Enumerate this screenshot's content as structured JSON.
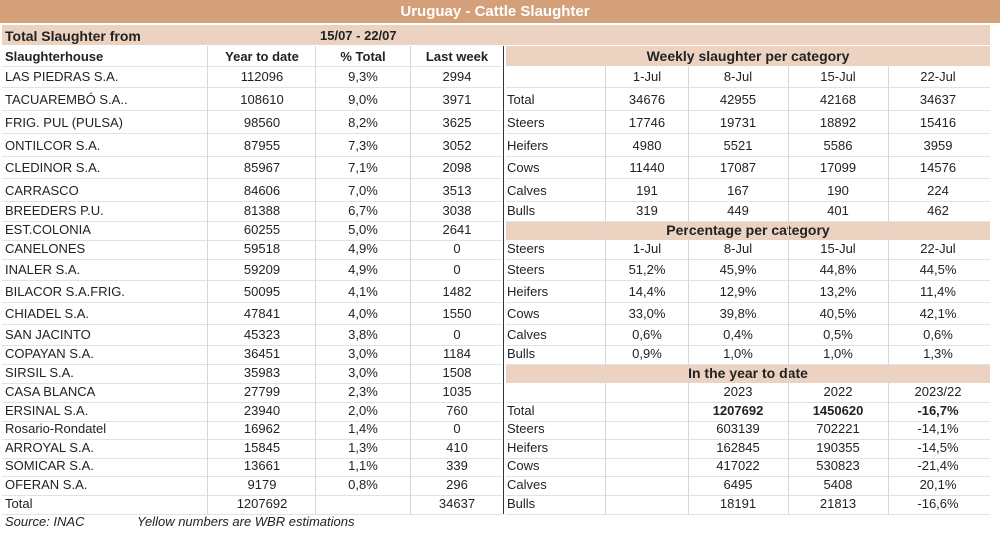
{
  "title": "Uruguay - Cattle Slaughter",
  "period_label": "Total Slaughter from",
  "period": "15/07 - 22/07",
  "colors": {
    "title_bar": "#d4a07a",
    "section_bar": "#ecd3c1"
  },
  "left_table": {
    "headers": [
      "Slaughterhouse",
      "Year to date",
      "% Total",
      "Last week"
    ],
    "rows": [
      [
        "LAS PIEDRAS S.A.",
        "112096",
        "9,3%",
        "2994"
      ],
      [
        "TACUAREMBÓ S.A..",
        "108610",
        "9,0%",
        "3971"
      ],
      [
        "FRIG. PUL (PULSA)",
        "98560",
        "8,2%",
        "3625"
      ],
      [
        "ONTILCOR S.A.",
        "87955",
        "7,3%",
        "3052"
      ],
      [
        "CLEDINOR S.A.",
        "85967",
        "7,1%",
        "2098"
      ],
      [
        "CARRASCO",
        "84606",
        "7,0%",
        "3513"
      ],
      [
        "BREEDERS P.U.",
        "81388",
        "6,7%",
        "3038"
      ],
      [
        "EST.COLONIA",
        "60255",
        "5,0%",
        "2641"
      ],
      [
        "CANELONES",
        "59518",
        "4,9%",
        "0"
      ],
      [
        "INALER S.A.",
        "59209",
        "4,9%",
        "0"
      ],
      [
        "BILACOR S.A.FRIG.",
        "50095",
        "4,1%",
        "1482"
      ],
      [
        "CHIADEL S.A.",
        "47841",
        "4,0%",
        "1550"
      ],
      [
        "SAN JACINTO",
        "45323",
        "3,8%",
        "0"
      ],
      [
        "COPAYAN S.A.",
        "36451",
        "3,0%",
        "1184"
      ],
      [
        "SIRSIL S.A.",
        "35983",
        "3,0%",
        "1508"
      ],
      [
        "CASA BLANCA",
        "27799",
        "2,3%",
        "1035"
      ],
      [
        "ERSINAL S.A.",
        "23940",
        "2,0%",
        "760"
      ],
      [
        "Rosario-Rondatel",
        "16962",
        "1,4%",
        "0"
      ],
      [
        "ARROYAL S.A.",
        "15845",
        "1,3%",
        "410"
      ],
      [
        "SOMICAR S.A.",
        "13661",
        "1,1%",
        "339"
      ],
      [
        "OFERAN S.A.",
        "9179",
        "0,8%",
        "296"
      ],
      [
        "Total",
        "1207692",
        "",
        "34637"
      ]
    ]
  },
  "footnote": {
    "source": "Source: INAC",
    "note": "Yellow numbers are WBR estimations"
  },
  "weekly": {
    "title": "Weekly slaughter per category",
    "headers": [
      "",
      "1-Jul",
      "8-Jul",
      "15-Jul",
      "22-Jul"
    ],
    "rows": [
      [
        "Total",
        "34676",
        "42955",
        "42168",
        "34637"
      ],
      [
        "Steers",
        "17746",
        "19731",
        "18892",
        "15416"
      ],
      [
        "Heifers",
        "4980",
        "5521",
        "5586",
        "3959"
      ],
      [
        "Cows",
        "11440",
        "17087",
        "17099",
        "14576"
      ],
      [
        "Calves",
        "191",
        "167",
        "190",
        "224"
      ],
      [
        "Bulls",
        "319",
        "449",
        "401",
        "462"
      ]
    ]
  },
  "percentage": {
    "title": "Percentage per category",
    "headers": [
      "Steers",
      "1-Jul",
      "8-Jul",
      "15-Jul",
      "22-Jul"
    ],
    "rows": [
      [
        "Steers",
        "51,2%",
        "45,9%",
        "44,8%",
        "44,5%"
      ],
      [
        "Heifers",
        "14,4%",
        "12,9%",
        "13,2%",
        "11,4%"
      ],
      [
        "Cows",
        "33,0%",
        "39,8%",
        "40,5%",
        "42,1%"
      ],
      [
        "Calves",
        "0,6%",
        "0,4%",
        "0,5%",
        "0,6%"
      ],
      [
        "Bulls",
        "0,9%",
        "1,0%",
        "1,0%",
        "1,3%"
      ]
    ]
  },
  "ytd": {
    "title": "In the year to date",
    "headers": [
      "",
      "",
      "2023",
      "2022",
      "2023/22"
    ],
    "rows": [
      [
        "Total",
        "",
        "1207692",
        "1450620",
        "-16,7%"
      ],
      [
        "Steers",
        "",
        "603139",
        "702221",
        "-14,1%"
      ],
      [
        "Heifers",
        "",
        "162845",
        "190355",
        "-14,5%"
      ],
      [
        "Cows",
        "",
        "417022",
        "530823",
        "-21,4%"
      ],
      [
        "Calves",
        "",
        "6495",
        "5408",
        "20,1%"
      ],
      [
        "Bulls",
        "",
        "18191",
        "21813",
        "-16,6%"
      ]
    ]
  }
}
